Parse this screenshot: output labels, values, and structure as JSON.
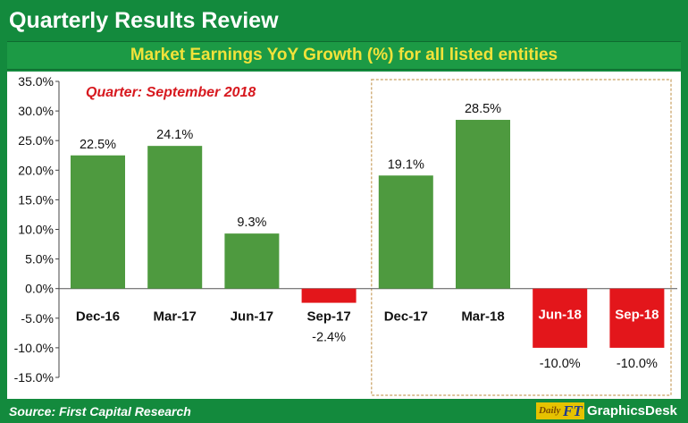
{
  "page": {
    "title": "Quarterly Results Review",
    "source": "Source: First Capital  Research",
    "brand": {
      "logo_daily": "Daily",
      "logo_ft": "FT",
      "name": "GraphicsDesk"
    }
  },
  "colors": {
    "background_green": "#138a3d",
    "subtitle_text": "#f2e23a",
    "positive_bar": "#4e9a3f",
    "negative_bar": "#e3161b",
    "annotation_red": "#d7191f",
    "highlight_box": "#c8a060"
  },
  "chart_data": {
    "type": "bar",
    "title": "Market Earnings YoY Growth (%) for all listed entities",
    "annotation": "Quarter: September 2018",
    "categories": [
      "Dec-16",
      "Mar-17",
      "Jun-17",
      "Sep-17",
      "Dec-17",
      "Mar-18",
      "Jun-18",
      "Sep-18"
    ],
    "values": [
      22.5,
      24.1,
      9.3,
      -2.4,
      19.1,
      28.5,
      -10.0,
      -10.0
    ],
    "data_labels": [
      "22.5%",
      "24.1%",
      "9.3%",
      "-2.4%",
      "19.1%",
      "28.5%",
      "-10.0%",
      "-10.0%"
    ],
    "highlighted_categories": [
      "Dec-17",
      "Mar-18",
      "Jun-18",
      "Sep-18"
    ],
    "ylim": [
      -15,
      35
    ],
    "yticks": [
      35,
      30,
      25,
      20,
      15,
      10,
      5,
      0,
      -5,
      -10,
      -15
    ],
    "ytick_labels": [
      "35.0%",
      "30.0%",
      "25.0%",
      "20.0%",
      "15.0%",
      "10.0%",
      "5.0%",
      "0.0%",
      "-5.0%",
      "-10.0%",
      "-15.0%"
    ],
    "grid": false,
    "legend": "none"
  }
}
